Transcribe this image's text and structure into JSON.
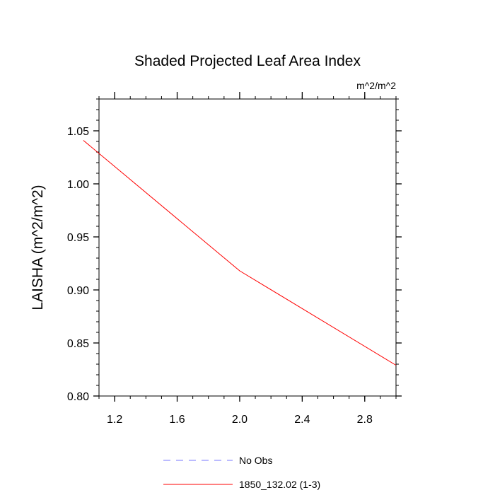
{
  "chart_data": {
    "type": "line",
    "title": "Shaded Projected Leaf Area Index",
    "units_label": "m^2/m^2",
    "xlabel": "",
    "ylabel": "LAISHA  (m^2/m^2)",
    "xlim": [
      1.1,
      3.0
    ],
    "ylim": [
      0.8,
      1.08
    ],
    "x_ticks": [
      "1.2",
      "1.6",
      "2.0",
      "2.4",
      "2.8"
    ],
    "y_ticks": [
      "0.80",
      "0.85",
      "0.90",
      "0.95",
      "1.00",
      "1.05"
    ],
    "grid": false,
    "legend_position": "bottom",
    "series": [
      {
        "name": "No Obs",
        "x": [],
        "y": [],
        "color": "#7777ff",
        "dash": "dashed"
      },
      {
        "name": "1850_132.02 (1-3)",
        "x": [
          1,
          2,
          3
        ],
        "y": [
          1.041,
          0.918,
          0.829
        ],
        "color": "#ff0000",
        "dash": "solid"
      }
    ]
  }
}
